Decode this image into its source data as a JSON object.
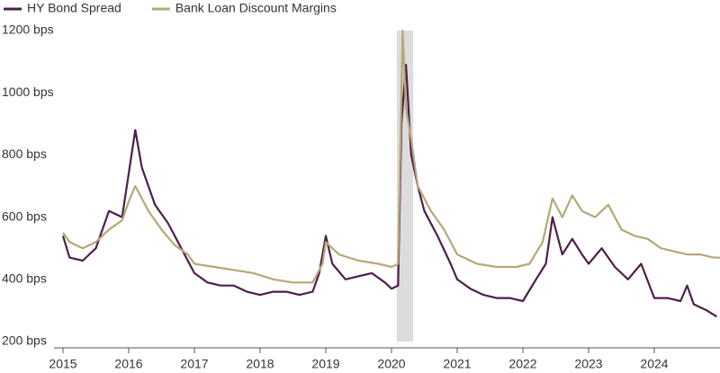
{
  "chart_data": {
    "type": "line",
    "xlim": [
      2015,
      2025
    ],
    "xticks": [
      2015,
      2016,
      2017,
      2018,
      2019,
      2020,
      2021,
      2022,
      2023,
      2024
    ],
    "ylim": [
      200,
      1200
    ],
    "yticks": [
      {
        "value": 200,
        "label": "200 bps"
      },
      {
        "value": 400,
        "label": "400 bps"
      },
      {
        "value": 600,
        "label": "600 bps"
      },
      {
        "value": 800,
        "label": "800 bps"
      },
      {
        "value": 1000,
        "label": "1000 bps"
      },
      {
        "value": 1200,
        "label": "1200 bps"
      }
    ],
    "grid": false,
    "legend": "top-left",
    "shaded_span": [
      2020.08,
      2020.33
    ],
    "series": [
      {
        "name": "HY Bond Spread",
        "color": "#4e1f4a",
        "x": [
          2015.0,
          2015.1,
          2015.3,
          2015.5,
          2015.7,
          2015.9,
          2016.0,
          2016.1,
          2016.2,
          2016.4,
          2016.6,
          2016.8,
          2017.0,
          2017.2,
          2017.4,
          2017.6,
          2017.8,
          2018.0,
          2018.2,
          2018.4,
          2018.6,
          2018.8,
          2018.9,
          2019.0,
          2019.1,
          2019.3,
          2019.5,
          2019.7,
          2019.9,
          2020.0,
          2020.1,
          2020.15,
          2020.22,
          2020.3,
          2020.4,
          2020.5,
          2020.7,
          2020.9,
          2021.0,
          2021.2,
          2021.4,
          2021.6,
          2021.8,
          2022.0,
          2022.2,
          2022.35,
          2022.45,
          2022.6,
          2022.75,
          2022.9,
          2023.0,
          2023.2,
          2023.4,
          2023.6,
          2023.8,
          2024.0,
          2024.2,
          2024.4,
          2024.5,
          2024.6,
          2024.8,
          2024.95
        ],
        "values": [
          540,
          470,
          460,
          500,
          620,
          600,
          740,
          880,
          760,
          640,
          580,
          500,
          420,
          390,
          380,
          380,
          360,
          350,
          360,
          360,
          350,
          360,
          420,
          540,
          450,
          400,
          410,
          420,
          390,
          370,
          380,
          900,
          1090,
          800,
          700,
          620,
          540,
          450,
          400,
          370,
          350,
          340,
          340,
          330,
          400,
          450,
          600,
          480,
          530,
          480,
          450,
          500,
          440,
          400,
          450,
          340,
          340,
          330,
          380,
          320,
          300,
          280
        ]
      },
      {
        "name": "Bank Loan Discount Margins",
        "color": "#b5a878",
        "x": [
          2015.0,
          2015.1,
          2015.3,
          2015.5,
          2015.7,
          2015.9,
          2016.0,
          2016.1,
          2016.3,
          2016.5,
          2016.7,
          2016.9,
          2017.0,
          2017.3,
          2017.6,
          2017.9,
          2018.2,
          2018.5,
          2018.8,
          2018.95,
          2019.0,
          2019.2,
          2019.5,
          2019.8,
          2020.0,
          2020.1,
          2020.17,
          2020.22,
          2020.3,
          2020.4,
          2020.6,
          2020.8,
          2021.0,
          2021.3,
          2021.6,
          2021.9,
          2022.1,
          2022.3,
          2022.45,
          2022.6,
          2022.75,
          2022.9,
          2023.1,
          2023.3,
          2023.5,
          2023.7,
          2023.9,
          2024.1,
          2024.3,
          2024.5,
          2024.7,
          2024.9,
          2025.0
        ],
        "values": [
          550,
          520,
          500,
          520,
          560,
          590,
          650,
          700,
          620,
          560,
          510,
          480,
          450,
          440,
          430,
          420,
          400,
          390,
          390,
          450,
          520,
          480,
          460,
          450,
          440,
          450,
          1200,
          950,
          850,
          700,
          620,
          560,
          480,
          450,
          440,
          440,
          450,
          520,
          660,
          600,
          670,
          620,
          600,
          640,
          560,
          540,
          530,
          500,
          490,
          480,
          480,
          470,
          470
        ]
      }
    ]
  }
}
